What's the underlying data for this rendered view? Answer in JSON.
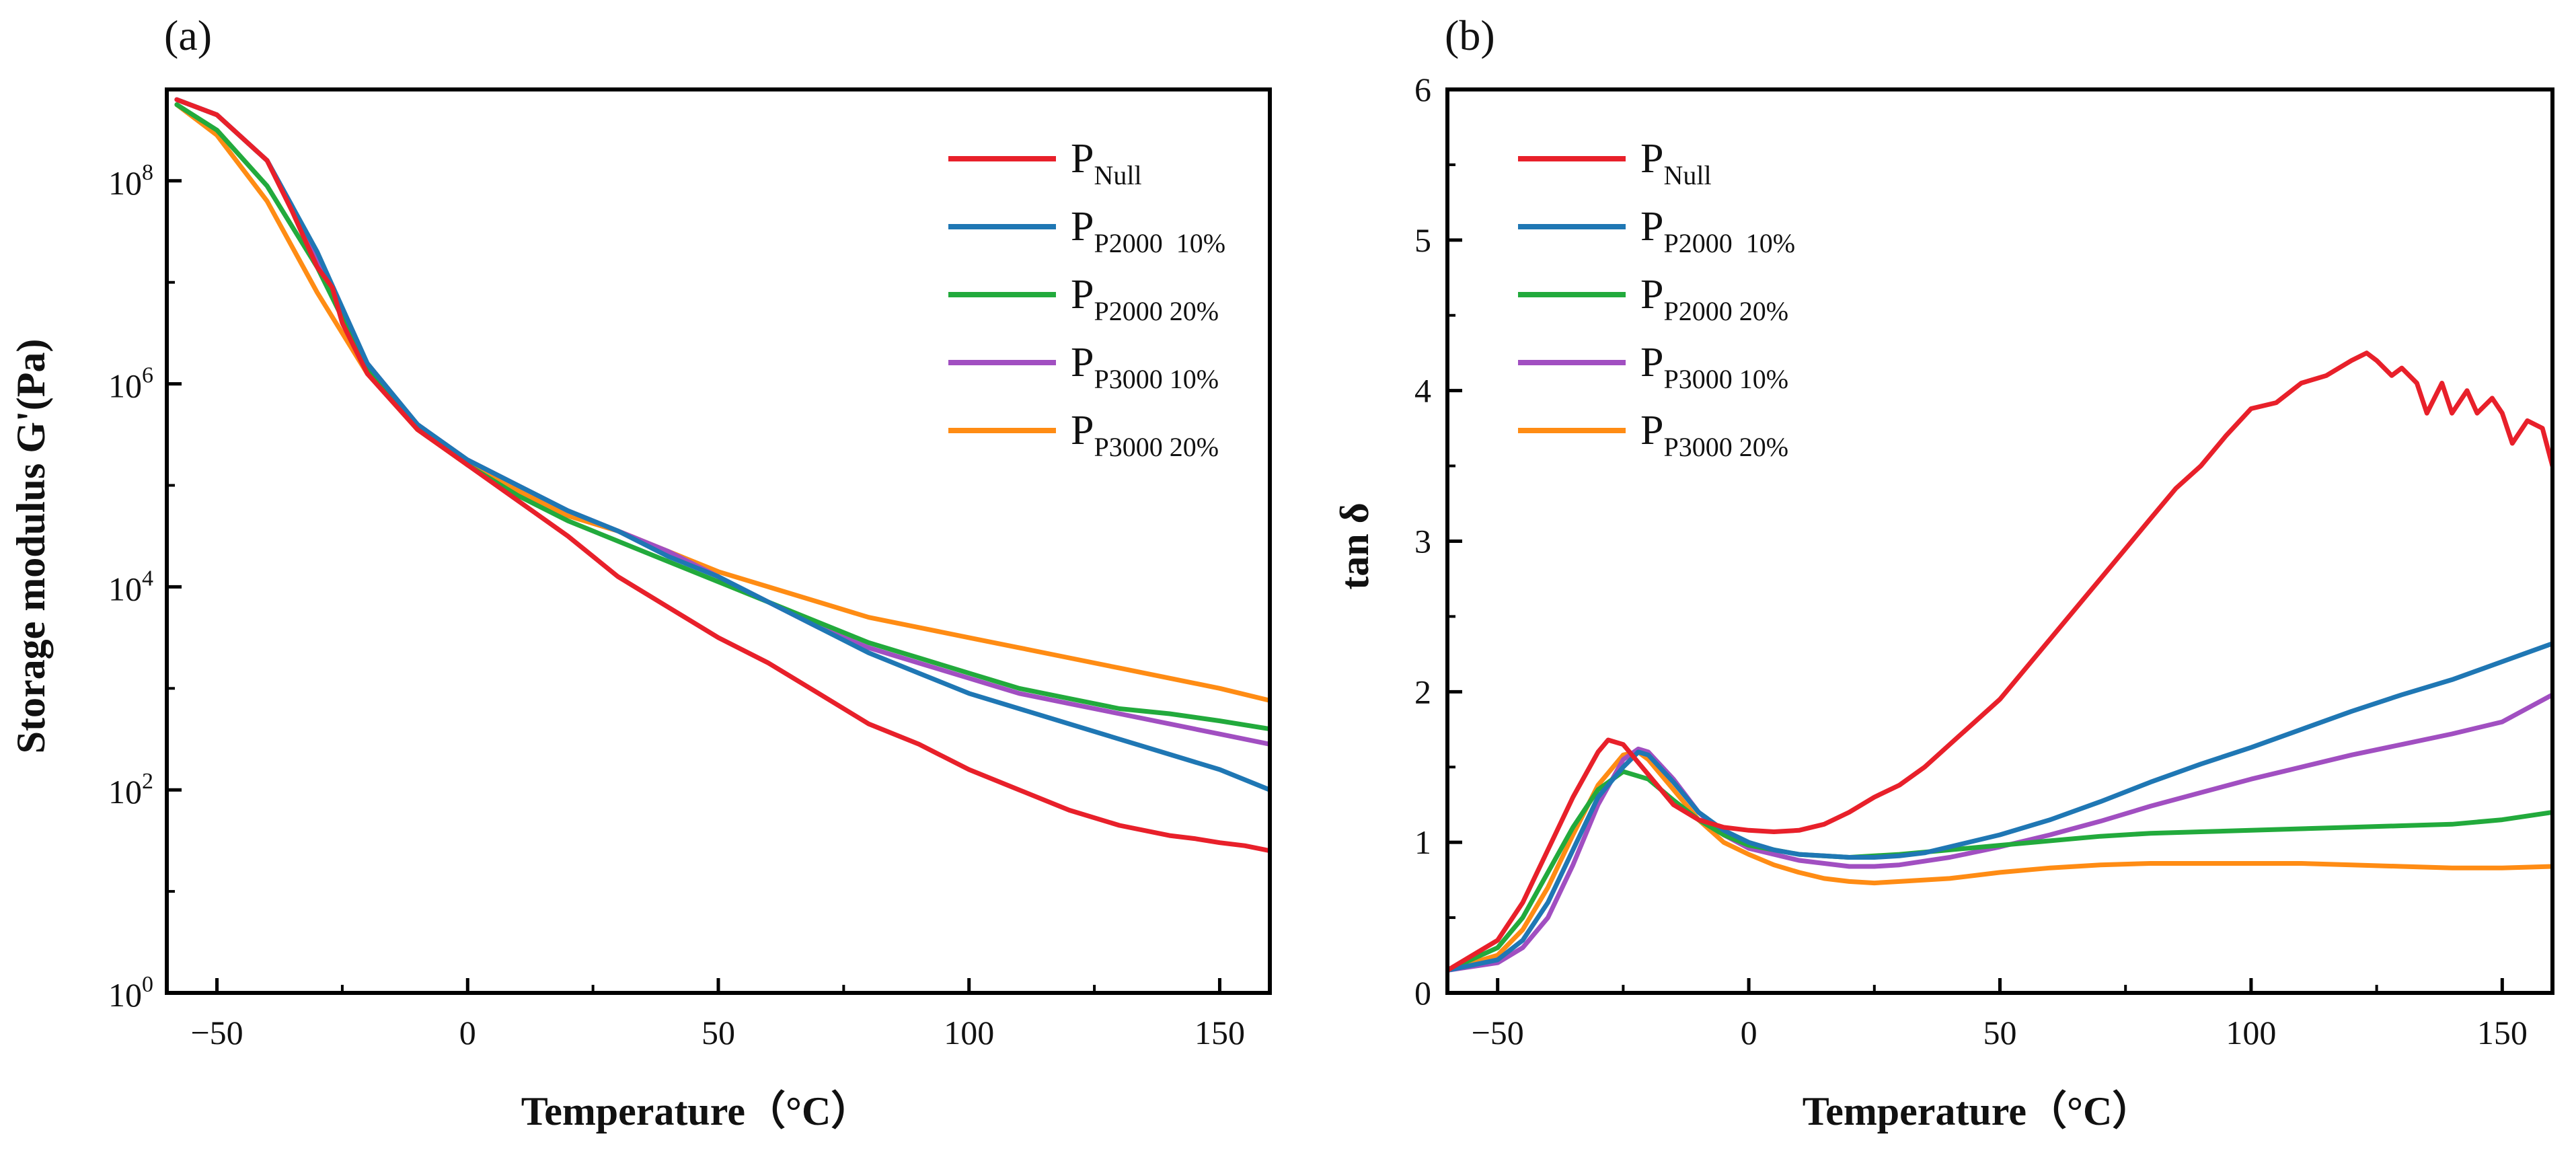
{
  "colors": {
    "P_Null": "#e8202a",
    "P_P2000_10": "#1f77b4",
    "P_P2000_20": "#22aa3c",
    "P_P3000_10": "#a14fc1",
    "P_P3000_20": "#ff8c14"
  },
  "chart_data": [
    {
      "type": "line",
      "panel_label": "(a)",
      "xlabel": "Temperature（°C）",
      "ylabel": "Storage modulus G'(Pa)",
      "xlim": [
        -60,
        160
      ],
      "ylim_log10": [
        0,
        8.9
      ],
      "y_scale": "log",
      "grid": false,
      "legend_position": "top-right",
      "x_ticks": [
        -50,
        0,
        50,
        100,
        150
      ],
      "x_tick_labels": [
        "−50",
        "0",
        "50",
        "100",
        "150"
      ],
      "y_ticks_log10": [
        0,
        2,
        4,
        6,
        8
      ],
      "y_tick_labels": [
        {
          "base": "10",
          "exp": "0"
        },
        {
          "base": "10",
          "exp": "2"
        },
        {
          "base": "10",
          "exp": "4"
        },
        {
          "base": "10",
          "exp": "6"
        },
        {
          "base": "10",
          "exp": "8"
        }
      ],
      "series": [
        {
          "key": "P_Null",
          "name_main": "P",
          "name_sub": "Null",
          "x": [
            -58,
            -50,
            -40,
            -35,
            -30,
            -27,
            -25,
            -20,
            -10,
            0,
            10,
            20,
            30,
            40,
            50,
            60,
            70,
            80,
            90,
            100,
            110,
            120,
            130,
            140,
            145,
            150,
            155,
            160
          ],
          "y_log10": [
            8.8,
            8.65,
            8.2,
            7.7,
            7.15,
            6.95,
            6.6,
            6.1,
            5.55,
            5.2,
            4.85,
            4.5,
            4.1,
            3.8,
            3.5,
            3.25,
            2.95,
            2.65,
            2.45,
            2.2,
            2.0,
            1.8,
            1.65,
            1.55,
            1.52,
            1.48,
            1.45,
            1.4
          ]
        },
        {
          "key": "P_P2000_10",
          "name_main": "P",
          "name_sub": "P2000  10%",
          "x": [
            -58,
            -50,
            -40,
            -30,
            -25,
            -20,
            -10,
            0,
            10,
            20,
            30,
            40,
            50,
            60,
            70,
            80,
            90,
            100,
            110,
            120,
            130,
            140,
            150,
            160
          ],
          "y_log10": [
            8.8,
            8.65,
            8.2,
            7.3,
            6.75,
            6.2,
            5.6,
            5.25,
            5.0,
            4.75,
            4.55,
            4.3,
            4.1,
            3.85,
            3.6,
            3.35,
            3.15,
            2.95,
            2.8,
            2.65,
            2.5,
            2.35,
            2.2,
            2.0
          ]
        },
        {
          "key": "P_P2000_20",
          "name_main": "P",
          "name_sub": "P2000 20%",
          "x": [
            -58,
            -50,
            -40,
            -30,
            -25,
            -20,
            -10,
            0,
            10,
            20,
            30,
            40,
            50,
            60,
            70,
            80,
            90,
            100,
            110,
            120,
            130,
            140,
            150,
            160
          ],
          "y_log10": [
            8.75,
            8.5,
            7.95,
            7.15,
            6.65,
            6.15,
            5.6,
            5.2,
            4.9,
            4.65,
            4.45,
            4.25,
            4.05,
            3.85,
            3.65,
            3.45,
            3.3,
            3.15,
            3.0,
            2.9,
            2.8,
            2.75,
            2.68,
            2.6
          ]
        },
        {
          "key": "P_P3000_10",
          "name_main": "P",
          "name_sub": "P3000 10%",
          "x": [
            -58,
            -50,
            -40,
            -35,
            -30,
            -25,
            -20,
            -10,
            0,
            10,
            20,
            30,
            40,
            50,
            60,
            70,
            80,
            90,
            100,
            110,
            120,
            130,
            140,
            150,
            160
          ],
          "y_log10": [
            8.8,
            8.65,
            8.2,
            7.75,
            7.2,
            6.7,
            6.2,
            5.6,
            5.25,
            5.0,
            4.75,
            4.55,
            4.35,
            4.1,
            3.85,
            3.6,
            3.4,
            3.25,
            3.1,
            2.95,
            2.85,
            2.75,
            2.65,
            2.55,
            2.45
          ]
        },
        {
          "key": "P_P3000_20",
          "name_main": "P",
          "name_sub": "P3000 20%",
          "x": [
            -58,
            -50,
            -40,
            -30,
            -25,
            -20,
            -10,
            0,
            10,
            20,
            30,
            40,
            50,
            60,
            70,
            80,
            90,
            100,
            110,
            120,
            130,
            140,
            150,
            160
          ],
          "y_log10": [
            8.75,
            8.45,
            7.8,
            6.9,
            6.5,
            6.1,
            5.55,
            5.2,
            4.95,
            4.7,
            4.55,
            4.35,
            4.15,
            4.0,
            3.85,
            3.7,
            3.6,
            3.5,
            3.4,
            3.3,
            3.2,
            3.1,
            3.0,
            2.88
          ]
        }
      ]
    },
    {
      "type": "line",
      "panel_label": "(b)",
      "xlabel": "Temperature（°C）",
      "ylabel": "tan δ",
      "xlim": [
        -60,
        160
      ],
      "ylim": [
        0,
        6
      ],
      "grid": false,
      "legend_position": "top-left",
      "x_ticks": [
        -50,
        0,
        50,
        100,
        150
      ],
      "x_tick_labels": [
        "−50",
        "0",
        "50",
        "100",
        "150"
      ],
      "y_ticks": [
        0,
        1,
        2,
        3,
        4,
        5,
        6
      ],
      "y_tick_labels": [
        "0",
        "1",
        "2",
        "3",
        "4",
        "5",
        "6"
      ],
      "series": [
        {
          "key": "P_Null",
          "name_main": "P",
          "name_sub": "Null",
          "x": [
            -60,
            -50,
            -45,
            -40,
            -35,
            -30,
            -28,
            -25,
            -20,
            -15,
            -10,
            -5,
            0,
            5,
            10,
            15,
            20,
            25,
            30,
            35,
            40,
            45,
            50,
            55,
            60,
            65,
            70,
            75,
            80,
            85,
            90,
            95,
            100,
            105,
            110,
            115,
            120,
            123,
            125,
            128,
            130,
            133,
            135,
            138,
            140,
            143,
            145,
            148,
            150,
            152,
            155,
            158,
            160
          ],
          "y": [
            0.15,
            0.35,
            0.6,
            0.95,
            1.3,
            1.6,
            1.68,
            1.65,
            1.45,
            1.25,
            1.15,
            1.1,
            1.08,
            1.07,
            1.08,
            1.12,
            1.2,
            1.3,
            1.38,
            1.5,
            1.65,
            1.8,
            1.95,
            2.15,
            2.35,
            2.55,
            2.75,
            2.95,
            3.15,
            3.35,
            3.5,
            3.7,
            3.88,
            3.92,
            4.05,
            4.1,
            4.2,
            4.25,
            4.2,
            4.1,
            4.15,
            4.05,
            3.85,
            4.05,
            3.85,
            4.0,
            3.85,
            3.95,
            3.85,
            3.65,
            3.8,
            3.75,
            3.5
          ]
        },
        {
          "key": "P_P2000_10",
          "name_main": "P",
          "name_sub": "P2000  10%",
          "x": [
            -60,
            -50,
            -45,
            -40,
            -35,
            -30,
            -25,
            -22,
            -20,
            -15,
            -10,
            -5,
            0,
            5,
            10,
            15,
            20,
            25,
            30,
            35,
            40,
            50,
            60,
            70,
            80,
            90,
            100,
            110,
            120,
            130,
            140,
            150,
            160
          ],
          "y": [
            0.15,
            0.22,
            0.35,
            0.6,
            0.95,
            1.3,
            1.5,
            1.6,
            1.58,
            1.4,
            1.2,
            1.08,
            1.0,
            0.95,
            0.92,
            0.91,
            0.9,
            0.9,
            0.91,
            0.93,
            0.97,
            1.05,
            1.15,
            1.27,
            1.4,
            1.52,
            1.63,
            1.75,
            1.87,
            1.98,
            2.08,
            2.2,
            2.32
          ]
        },
        {
          "key": "P_P2000_20",
          "name_main": "P",
          "name_sub": "P2000 20%",
          "x": [
            -60,
            -50,
            -45,
            -40,
            -35,
            -30,
            -25,
            -20,
            -15,
            -10,
            -5,
            0,
            10,
            20,
            30,
            40,
            50,
            60,
            70,
            80,
            90,
            100,
            110,
            120,
            130,
            140,
            150,
            160
          ],
          "y": [
            0.15,
            0.3,
            0.5,
            0.8,
            1.1,
            1.35,
            1.47,
            1.42,
            1.28,
            1.15,
            1.05,
            0.98,
            0.92,
            0.9,
            0.92,
            0.95,
            0.98,
            1.01,
            1.04,
            1.06,
            1.07,
            1.08,
            1.09,
            1.1,
            1.11,
            1.12,
            1.15,
            1.2
          ]
        },
        {
          "key": "P_P3000_10",
          "name_main": "P",
          "name_sub": "P3000 10%",
          "x": [
            -60,
            -50,
            -45,
            -40,
            -35,
            -30,
            -25,
            -22,
            -20,
            -15,
            -10,
            -5,
            0,
            10,
            20,
            25,
            30,
            40,
            50,
            60,
            70,
            80,
            90,
            100,
            110,
            120,
            130,
            140,
            150,
            160
          ],
          "y": [
            0.15,
            0.2,
            0.3,
            0.5,
            0.85,
            1.25,
            1.55,
            1.62,
            1.6,
            1.42,
            1.2,
            1.05,
            0.96,
            0.88,
            0.84,
            0.84,
            0.85,
            0.9,
            0.97,
            1.05,
            1.14,
            1.24,
            1.33,
            1.42,
            1.5,
            1.58,
            1.65,
            1.72,
            1.8,
            1.98
          ]
        },
        {
          "key": "P_P3000_20",
          "name_main": "P",
          "name_sub": "P3000 20%",
          "x": [
            -60,
            -50,
            -45,
            -40,
            -35,
            -30,
            -25,
            -22,
            -20,
            -15,
            -10,
            -5,
            0,
            5,
            10,
            15,
            20,
            25,
            30,
            40,
            50,
            60,
            70,
            80,
            90,
            100,
            110,
            120,
            130,
            140,
            150,
            160
          ],
          "y": [
            0.15,
            0.25,
            0.42,
            0.7,
            1.05,
            1.38,
            1.58,
            1.6,
            1.55,
            1.35,
            1.15,
            1.0,
            0.92,
            0.85,
            0.8,
            0.76,
            0.74,
            0.73,
            0.74,
            0.76,
            0.8,
            0.83,
            0.85,
            0.86,
            0.86,
            0.86,
            0.86,
            0.85,
            0.84,
            0.83,
            0.83,
            0.84
          ]
        }
      ]
    }
  ]
}
